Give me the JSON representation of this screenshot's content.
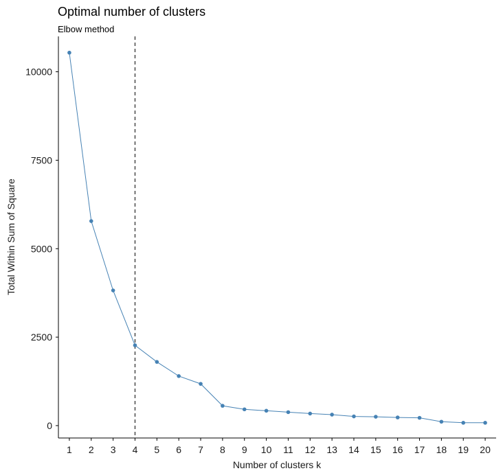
{
  "chart_data": {
    "type": "line",
    "title": "Optimal number of clusters",
    "subtitle": "Elbow method",
    "xlabel": "Number of clusters k",
    "ylabel": "Total Within Sum of Square",
    "x": [
      1,
      2,
      3,
      4,
      5,
      6,
      7,
      8,
      9,
      10,
      11,
      12,
      13,
      14,
      15,
      16,
      17,
      18,
      19,
      20
    ],
    "x_tick_labels": [
      "1",
      "2",
      "3",
      "4",
      "5",
      "6",
      "7",
      "8",
      "9",
      "10",
      "11",
      "12",
      "13",
      "14",
      "15",
      "16",
      "17",
      "18",
      "19",
      "20"
    ],
    "series": [
      {
        "values": [
          10540,
          5780,
          3820,
          2270,
          1800,
          1400,
          1180,
          560,
          460,
          420,
          380,
          340,
          310,
          260,
          250,
          230,
          220,
          110,
          80,
          80
        ]
      }
    ],
    "y_ticks": [
      0,
      2500,
      5000,
      7500,
      10000
    ],
    "y_tick_labels": [
      "0",
      "2500",
      "5000",
      "7500",
      "10000"
    ],
    "ylim": [
      -350,
      11000
    ],
    "xlim": [
      0.5,
      20.5
    ],
    "vline_x": 4,
    "grid": false,
    "colors": {
      "series": "#4682B4",
      "vline": "#000000"
    }
  }
}
